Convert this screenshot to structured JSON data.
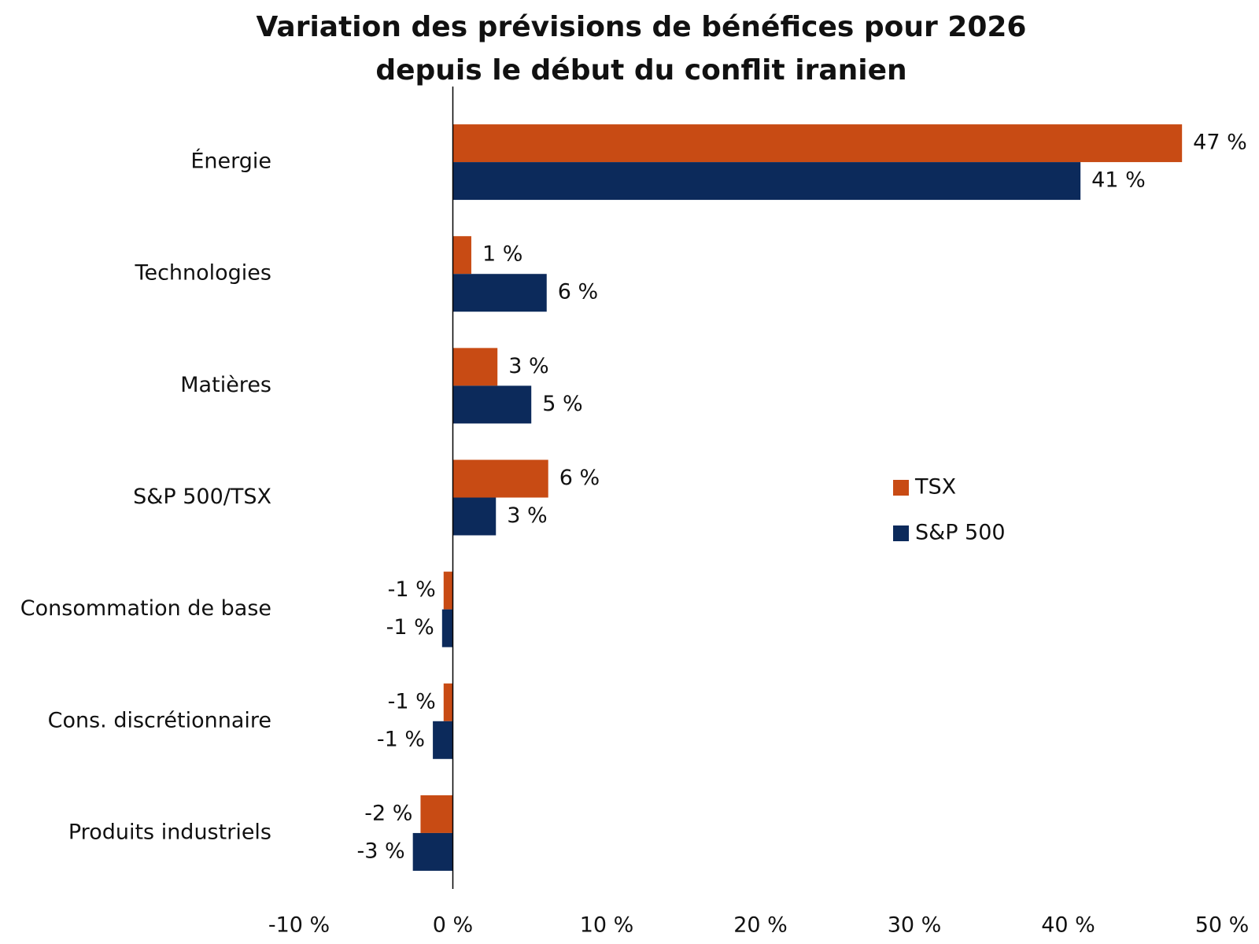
{
  "chart_data": {
    "type": "hbar",
    "title": [
      "Variation des prévisions de bénéfices pour 2026",
      "depuis le début du conflit iranien"
    ],
    "categories": [
      "Énergie",
      "Technologies",
      "Matières",
      "S&P 500/TSX",
      "Consommation de base",
      "Cons. discrétionnaire",
      "Produits industriels"
    ],
    "series": [
      {
        "name": "TSX",
        "color": "#c84b14",
        "values": [
          47.4,
          1.2,
          2.9,
          6.2,
          -0.6,
          -0.6,
          -2.1
        ],
        "value_labels": [
          "47 %",
          "1 %",
          "3 %",
          "6 %",
          "-1 %",
          "-1 %",
          "-2 %"
        ]
      },
      {
        "name": "S&P 500",
        "color": "#0c2a5b",
        "values": [
          40.8,
          6.1,
          5.1,
          2.8,
          -0.7,
          -1.3,
          -2.6
        ],
        "value_labels": [
          "41 %",
          "6 %",
          "5 %",
          "3 %",
          "-1 %",
          "-1 %",
          "-3 %"
        ]
      }
    ],
    "xlim": [
      -10,
      50
    ],
    "xticks": [
      {
        "value": -10,
        "label": "-10 %"
      },
      {
        "value": 0,
        "label": "0 %"
      },
      {
        "value": 10,
        "label": "10 %"
      },
      {
        "value": 20,
        "label": "20 %"
      },
      {
        "value": 30,
        "label": "30 %"
      },
      {
        "value": 40,
        "label": "40 %"
      },
      {
        "value": 50,
        "label": "50 %"
      }
    ],
    "grid": false
  }
}
